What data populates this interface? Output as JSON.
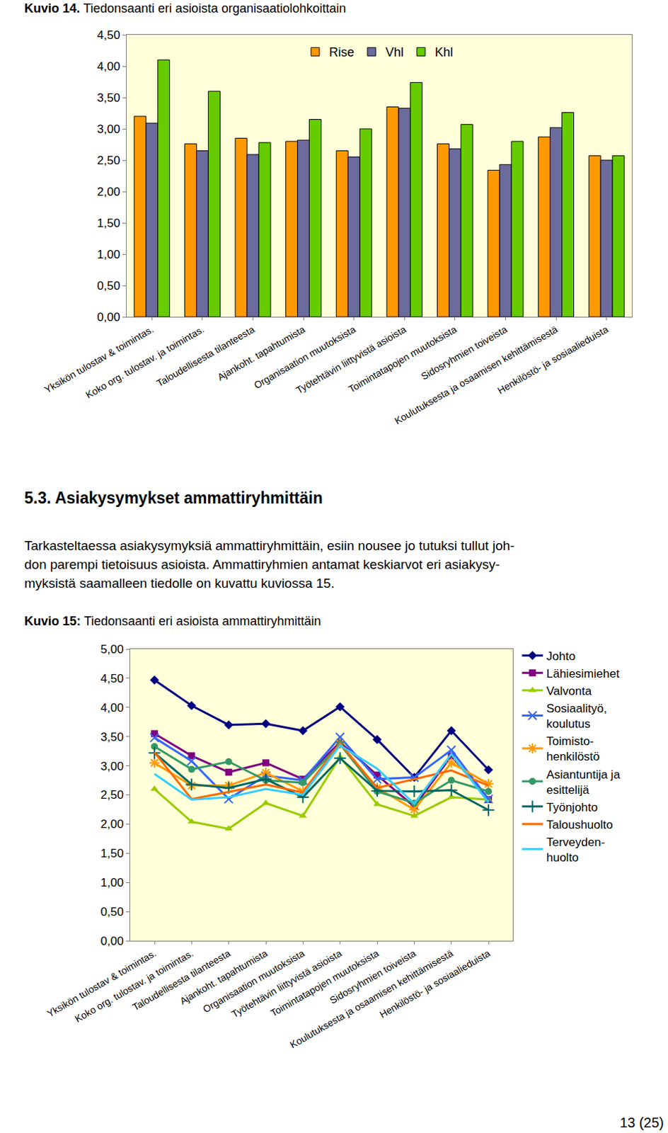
{
  "document": {
    "heading": "5.3. Asiakysymykset ammattiryhmittäin",
    "paragraph": [
      "Tarkasteltaessa asiakysymyksiä ammattiryhmittäin, esiin nousee jo tutuksi tullut joh-",
      "don parempi tietoisuus asioista. Ammattiryhmien antamat keskiarvot eri asiakysy-",
      "myksistä saamalleen tiedolle on kuvattu kuviossa 15."
    ],
    "page_number": "13 (25)"
  },
  "chart_data": [
    {
      "type": "bar",
      "caption_label": "Kuvio 14.",
      "title": "Tiedonsaanti eri asioista organisaatiolohkoittain",
      "categories": [
        "Yksikön tulostav & toimintas.",
        "Koko org. tulostav. ja toimintas.",
        "Taloudellisesta tilanteesta",
        "Ajankoht. tapahtumista",
        "Organisaation muutoksista",
        "Työtehtävin liittyvistä asioista",
        "Toimintatapojen muutoksista",
        "Sidosryhmien toiveista",
        "Koulutuksesta ja osaamisen kehittämisestä",
        "Henkilöstö- ja sosiaalieduista"
      ],
      "series": [
        {
          "name": "Rise",
          "color": "#ff9900",
          "values": [
            3.2,
            2.76,
            2.85,
            2.8,
            2.65,
            3.35,
            2.76,
            2.34,
            2.87,
            2.57
          ]
        },
        {
          "name": "Vhl",
          "color": "#6b6b9e",
          "values": [
            3.09,
            2.65,
            2.59,
            2.82,
            2.55,
            3.33,
            2.68,
            2.43,
            3.02,
            2.5
          ]
        },
        {
          "name": "Khl",
          "color": "#66cc00",
          "values": [
            4.1,
            3.6,
            2.78,
            3.15,
            3.0,
            3.74,
            3.07,
            2.8,
            3.26,
            2.57
          ]
        }
      ],
      "ylim": [
        0,
        4.5
      ],
      "yticks": [
        {
          "value": 0,
          "label": "0,00"
        },
        {
          "value": 0.5,
          "label": "0,50"
        },
        {
          "value": 1,
          "label": "1,00"
        },
        {
          "value": 1.5,
          "label": "1,50"
        },
        {
          "value": 2,
          "label": "2,00"
        },
        {
          "value": 2.5,
          "label": "2,50"
        },
        {
          "value": 3,
          "label": "3,00"
        },
        {
          "value": 3.5,
          "label": "3,50"
        },
        {
          "value": 4,
          "label": "4,00"
        },
        {
          "value": 4.5,
          "label": "4,50"
        }
      ],
      "grid": false,
      "legend": "top"
    },
    {
      "type": "line",
      "caption_label": "Kuvio 15:",
      "title": "Tiedonsaanti eri asioista ammattiryhmittäin",
      "categories": [
        "Yksikön tulostav & toimintas.",
        "Koko org. tulostav. ja toimintas.",
        "Taloudellisesta tilanteesta",
        "Ajankoht. tapahtumista",
        "Organisaation muutoksista",
        "Työtehtävin liittyvistä asioista",
        "Toimintatapojen muutoksista",
        "Sidosryhmien toiveista",
        "Koulutuksesta ja osaamisen kehittämisestä",
        "Henkilöstö- ja sosiaalieduista"
      ],
      "series": [
        {
          "name": "Johto",
          "color": "#000080",
          "marker": "diamond",
          "values": [
            4.47,
            4.03,
            3.7,
            3.72,
            3.6,
            4.01,
            3.45,
            2.8,
            3.6,
            2.93
          ]
        },
        {
          "name": "Lähiesimiehet",
          "color": "#800080",
          "marker": "square",
          "values": [
            3.55,
            3.17,
            2.89,
            3.05,
            2.77,
            3.4,
            2.84,
            2.3,
            3.17,
            2.42
          ]
        },
        {
          "name": "Valvonta",
          "color": "#99cc00",
          "marker": "triangle-up",
          "values": [
            2.6,
            2.04,
            1.92,
            2.36,
            2.14,
            3.15,
            2.34,
            2.14,
            2.46,
            2.42
          ]
        },
        {
          "name": "Sosiaalityö, koulutus",
          "color": "#3366ff",
          "marker": "x",
          "values": [
            3.48,
            3.08,
            2.43,
            2.83,
            2.75,
            3.49,
            2.77,
            2.8,
            3.27,
            2.43
          ]
        },
        {
          "name": "Toimisto-henkilöstö",
          "color": "#ff9900",
          "marker": "asterisk",
          "values": [
            3.05,
            2.66,
            2.66,
            2.88,
            2.56,
            3.38,
            2.62,
            2.25,
            3.05,
            2.69
          ]
        },
        {
          "name": "Asiantuntija ja esittelijä",
          "color": "#339966",
          "marker": "circle",
          "values": [
            3.33,
            2.94,
            3.07,
            2.75,
            2.71,
            3.37,
            2.56,
            2.36,
            2.75,
            2.56
          ]
        },
        {
          "name": "Työnjohto",
          "color": "#006666",
          "marker": "cross",
          "values": [
            3.22,
            2.68,
            2.62,
            2.77,
            2.46,
            3.13,
            2.57,
            2.56,
            2.58,
            2.24
          ]
        },
        {
          "name": "Taloushuolto",
          "color": "#ff6600",
          "marker": "none",
          "values": [
            3.23,
            2.43,
            2.55,
            2.68,
            2.54,
            3.38,
            2.62,
            2.77,
            2.92,
            2.66
          ]
        },
        {
          "name": "Terveyden-huolto",
          "color": "#33ccff",
          "marker": "none",
          "values": [
            2.86,
            2.42,
            2.46,
            2.6,
            2.5,
            3.35,
            2.95,
            2.35,
            3.2,
            2.37
          ]
        }
      ],
      "ylim": [
        0,
        5
      ],
      "yticks": [
        {
          "value": 0,
          "label": "0,00"
        },
        {
          "value": 0.5,
          "label": "0,50"
        },
        {
          "value": 1,
          "label": "1,00"
        },
        {
          "value": 1.5,
          "label": "1,50"
        },
        {
          "value": 2,
          "label": "2,00"
        },
        {
          "value": 2.5,
          "label": "2,50"
        },
        {
          "value": 3,
          "label": "3,00"
        },
        {
          "value": 3.5,
          "label": "3,50"
        },
        {
          "value": 4,
          "label": "4,00"
        },
        {
          "value": 4.5,
          "label": "4,50"
        },
        {
          "value": 5,
          "label": "5,00"
        }
      ],
      "grid": false,
      "legend": "right"
    }
  ]
}
